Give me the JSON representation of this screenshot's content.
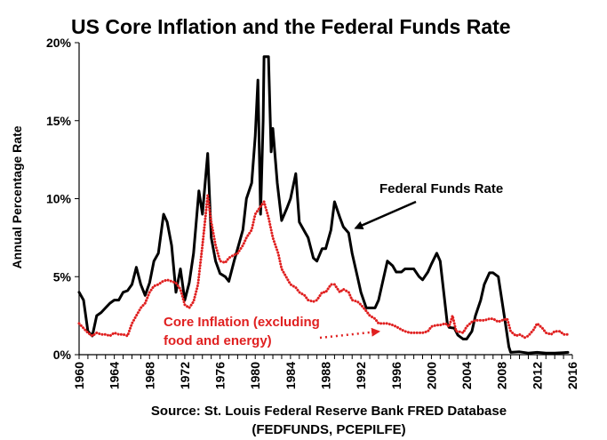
{
  "chart_data": {
    "type": "line",
    "title": "US Core Inflation and the Federal Funds Rate",
    "ylabel": "Annual Percentage Rate",
    "source_line1": "Source:  St. Louis Federal Reserve Bank FRED Database",
    "source_line2": "(FEDFUNDS, PCEPILFE)",
    "xlim": [
      1960,
      2016
    ],
    "ylim": [
      0,
      20
    ],
    "x_ticks": [
      "1960",
      "1964",
      "1968",
      "1972",
      "1976",
      "1980",
      "1984",
      "1988",
      "1992",
      "1996",
      "2000",
      "2004",
      "2008",
      "2012",
      "2016"
    ],
    "y_ticks": [
      "0%",
      "5%",
      "10%",
      "15%",
      "20%"
    ],
    "grid": false,
    "series": [
      {
        "name": "Federal Funds Rate",
        "color": "#000000",
        "style": "solid",
        "points": [
          [
            1960.0,
            4.0
          ],
          [
            1960.5,
            3.5
          ],
          [
            1961.0,
            1.5
          ],
          [
            1961.5,
            1.2
          ],
          [
            1962.0,
            2.5
          ],
          [
            1962.5,
            2.7
          ],
          [
            1963.0,
            3.0
          ],
          [
            1963.5,
            3.3
          ],
          [
            1964.0,
            3.5
          ],
          [
            1964.5,
            3.5
          ],
          [
            1965.0,
            4.0
          ],
          [
            1965.5,
            4.1
          ],
          [
            1966.0,
            4.5
          ],
          [
            1966.5,
            5.6
          ],
          [
            1967.0,
            4.5
          ],
          [
            1967.5,
            3.8
          ],
          [
            1968.0,
            4.6
          ],
          [
            1968.5,
            6.0
          ],
          [
            1969.0,
            6.5
          ],
          [
            1969.6,
            9.0
          ],
          [
            1970.0,
            8.5
          ],
          [
            1970.5,
            7.0
          ],
          [
            1971.0,
            4.0
          ],
          [
            1971.5,
            5.5
          ],
          [
            1972.0,
            3.5
          ],
          [
            1972.5,
            4.6
          ],
          [
            1973.0,
            6.5
          ],
          [
            1973.6,
            10.5
          ],
          [
            1974.0,
            9.0
          ],
          [
            1974.6,
            12.9
          ],
          [
            1975.0,
            7.5
          ],
          [
            1975.5,
            6.0
          ],
          [
            1976.0,
            5.2
          ],
          [
            1976.6,
            5.0
          ],
          [
            1977.0,
            4.7
          ],
          [
            1977.6,
            6.0
          ],
          [
            1978.0,
            6.8
          ],
          [
            1978.6,
            8.0
          ],
          [
            1979.0,
            10.0
          ],
          [
            1979.6,
            11.0
          ],
          [
            1980.0,
            14.0
          ],
          [
            1980.3,
            17.6
          ],
          [
            1980.6,
            9.0
          ],
          [
            1980.9,
            15.0
          ],
          [
            1981.0,
            19.1
          ],
          [
            1981.5,
            19.1
          ],
          [
            1981.8,
            13.0
          ],
          [
            1982.0,
            14.5
          ],
          [
            1982.5,
            11.0
          ],
          [
            1983.0,
            8.6
          ],
          [
            1983.6,
            9.4
          ],
          [
            1984.0,
            10.0
          ],
          [
            1984.6,
            11.6
          ],
          [
            1985.0,
            8.5
          ],
          [
            1985.6,
            7.9
          ],
          [
            1986.0,
            7.5
          ],
          [
            1986.6,
            6.2
          ],
          [
            1987.0,
            6.0
          ],
          [
            1987.6,
            6.8
          ],
          [
            1988.0,
            6.8
          ],
          [
            1988.6,
            8.0
          ],
          [
            1989.0,
            9.8
          ],
          [
            1989.6,
            8.8
          ],
          [
            1990.0,
            8.2
          ],
          [
            1990.6,
            7.8
          ],
          [
            1991.0,
            6.5
          ],
          [
            1991.6,
            5.0
          ],
          [
            1992.0,
            4.0
          ],
          [
            1992.6,
            3.0
          ],
          [
            1993.0,
            3.0
          ],
          [
            1993.6,
            3.0
          ],
          [
            1994.0,
            3.5
          ],
          [
            1994.6,
            5.0
          ],
          [
            1995.0,
            6.0
          ],
          [
            1995.6,
            5.7
          ],
          [
            1996.0,
            5.3
          ],
          [
            1996.6,
            5.3
          ],
          [
            1997.0,
            5.5
          ],
          [
            1998.0,
            5.5
          ],
          [
            1998.6,
            5.0
          ],
          [
            1999.0,
            4.8
          ],
          [
            1999.6,
            5.3
          ],
          [
            2000.0,
            5.8
          ],
          [
            2000.6,
            6.5
          ],
          [
            2001.0,
            6.0
          ],
          [
            2001.4,
            4.0
          ],
          [
            2001.8,
            2.0
          ],
          [
            2002.0,
            1.75
          ],
          [
            2002.6,
            1.7
          ],
          [
            2003.0,
            1.25
          ],
          [
            2003.6,
            1.0
          ],
          [
            2004.0,
            1.0
          ],
          [
            2004.6,
            1.5
          ],
          [
            2005.0,
            2.5
          ],
          [
            2005.6,
            3.5
          ],
          [
            2006.0,
            4.5
          ],
          [
            2006.6,
            5.25
          ],
          [
            2007.0,
            5.25
          ],
          [
            2007.6,
            5.0
          ],
          [
            2008.0,
            3.5
          ],
          [
            2008.4,
            2.0
          ],
          [
            2008.8,
            0.5
          ],
          [
            2009.0,
            0.15
          ],
          [
            2010.0,
            0.18
          ],
          [
            2011.0,
            0.1
          ],
          [
            2012.0,
            0.15
          ],
          [
            2013.0,
            0.1
          ],
          [
            2014.0,
            0.1
          ],
          [
            2015.0,
            0.13
          ],
          [
            2015.5,
            0.15
          ]
        ]
      },
      {
        "name": "Core Inflation (excluding food and energy)",
        "color": "#e02020",
        "style": "dotted",
        "points": [
          [
            1960.0,
            2.0
          ],
          [
            1960.5,
            1.7
          ],
          [
            1961.0,
            1.4
          ],
          [
            1961.5,
            1.2
          ],
          [
            1962.0,
            1.4
          ],
          [
            1962.5,
            1.3
          ],
          [
            1963.0,
            1.3
          ],
          [
            1963.5,
            1.2
          ],
          [
            1964.0,
            1.4
          ],
          [
            1964.5,
            1.3
          ],
          [
            1965.0,
            1.3
          ],
          [
            1965.5,
            1.2
          ],
          [
            1966.0,
            2.0
          ],
          [
            1966.5,
            2.5
          ],
          [
            1967.0,
            3.0
          ],
          [
            1967.5,
            3.3
          ],
          [
            1968.0,
            4.0
          ],
          [
            1968.5,
            4.4
          ],
          [
            1969.0,
            4.5
          ],
          [
            1969.5,
            4.7
          ],
          [
            1970.0,
            4.8
          ],
          [
            1970.5,
            4.7
          ],
          [
            1971.0,
            4.6
          ],
          [
            1971.5,
            4.2
          ],
          [
            1972.0,
            3.2
          ],
          [
            1972.5,
            3.0
          ],
          [
            1973.0,
            3.4
          ],
          [
            1973.5,
            4.5
          ],
          [
            1974.0,
            7.0
          ],
          [
            1974.6,
            10.2
          ],
          [
            1975.0,
            8.5
          ],
          [
            1975.5,
            7.0
          ],
          [
            1976.0,
            6.0
          ],
          [
            1976.6,
            5.9
          ],
          [
            1977.0,
            6.2
          ],
          [
            1977.6,
            6.4
          ],
          [
            1978.0,
            6.5
          ],
          [
            1978.6,
            7.0
          ],
          [
            1979.0,
            7.5
          ],
          [
            1979.6,
            8.0
          ],
          [
            1980.0,
            9.0
          ],
          [
            1980.6,
            9.5
          ],
          [
            1981.0,
            9.8
          ],
          [
            1981.5,
            8.8
          ],
          [
            1982.0,
            7.5
          ],
          [
            1982.6,
            6.5
          ],
          [
            1983.0,
            5.5
          ],
          [
            1983.5,
            5.0
          ],
          [
            1984.0,
            4.5
          ],
          [
            1984.6,
            4.3
          ],
          [
            1985.0,
            4.0
          ],
          [
            1985.6,
            3.8
          ],
          [
            1986.0,
            3.5
          ],
          [
            1986.6,
            3.4
          ],
          [
            1987.0,
            3.5
          ],
          [
            1987.6,
            4.0
          ],
          [
            1988.0,
            4.0
          ],
          [
            1988.6,
            4.5
          ],
          [
            1989.0,
            4.5
          ],
          [
            1989.6,
            4.0
          ],
          [
            1990.0,
            4.2
          ],
          [
            1990.6,
            4.0
          ],
          [
            1991.0,
            3.5
          ],
          [
            1991.6,
            3.4
          ],
          [
            1992.0,
            3.2
          ],
          [
            1992.6,
            2.8
          ],
          [
            1993.0,
            2.5
          ],
          [
            1993.6,
            2.3
          ],
          [
            1994.0,
            2.0
          ],
          [
            1994.6,
            2.0
          ],
          [
            1995.0,
            2.0
          ],
          [
            1995.6,
            1.9
          ],
          [
            1996.0,
            1.8
          ],
          [
            1996.6,
            1.6
          ],
          [
            1997.0,
            1.5
          ],
          [
            1997.6,
            1.4
          ],
          [
            1998.0,
            1.4
          ],
          [
            1998.6,
            1.4
          ],
          [
            1999.0,
            1.4
          ],
          [
            1999.6,
            1.5
          ],
          [
            2000.0,
            1.8
          ],
          [
            2000.6,
            1.9
          ],
          [
            2001.0,
            1.9
          ],
          [
            2001.6,
            2.0
          ],
          [
            2002.0,
            1.8
          ],
          [
            2002.4,
            2.5
          ],
          [
            2002.8,
            1.5
          ],
          [
            2003.0,
            1.5
          ],
          [
            2003.6,
            1.4
          ],
          [
            2004.0,
            1.8
          ],
          [
            2004.6,
            2.1
          ],
          [
            2005.0,
            2.2
          ],
          [
            2005.6,
            2.2
          ],
          [
            2006.0,
            2.2
          ],
          [
            2006.6,
            2.3
          ],
          [
            2007.0,
            2.3
          ],
          [
            2007.6,
            2.1
          ],
          [
            2008.0,
            2.2
          ],
          [
            2008.6,
            2.3
          ],
          [
            2009.0,
            1.5
          ],
          [
            2009.6,
            1.2
          ],
          [
            2010.0,
            1.3
          ],
          [
            2010.6,
            1.1
          ],
          [
            2011.0,
            1.2
          ],
          [
            2011.6,
            1.6
          ],
          [
            2012.0,
            2.0
          ],
          [
            2012.6,
            1.7
          ],
          [
            2013.0,
            1.4
          ],
          [
            2013.6,
            1.3
          ],
          [
            2014.0,
            1.5
          ],
          [
            2014.6,
            1.5
          ],
          [
            2015.0,
            1.3
          ],
          [
            2015.5,
            1.3
          ]
        ]
      }
    ],
    "annotations": [
      {
        "text": "Federal Funds Rate",
        "color": "#000000",
        "arrow": "solid",
        "target_year": 1991,
        "target_value": 8.0
      },
      {
        "lines": [
          "Core Inflation (excluding",
          "food and energy)"
        ],
        "color": "#e02020",
        "arrow": "dotted",
        "target_year": 1993,
        "target_value": 1.6
      }
    ]
  }
}
